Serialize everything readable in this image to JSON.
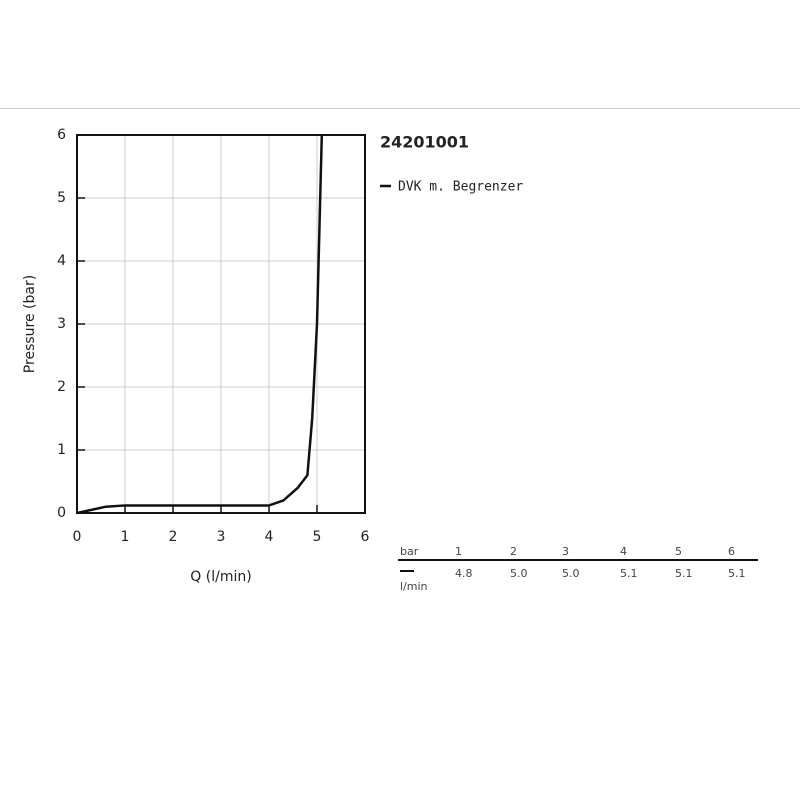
{
  "chart_data": {
    "type": "line",
    "title": "24201001",
    "x_label": "Q (l/min)",
    "y_label": "Pressure (bar)",
    "xlim": [
      0,
      6
    ],
    "ylim": [
      0,
      6
    ],
    "xticks": [
      0,
      1,
      2,
      3,
      4,
      5,
      6
    ],
    "yticks": [
      0,
      1,
      2,
      3,
      4,
      5,
      6
    ],
    "grid": true,
    "x": [
      0,
      0.3,
      0.6,
      1,
      2,
      3,
      4,
      4.3,
      4.6,
      4.8,
      4.9,
      5.0,
      5.05,
      5.1
    ],
    "series": [
      {
        "name": "DVK m. Begrenzer",
        "color": "#111111",
        "values": [
          0,
          0.05,
          0.1,
          0.12,
          0.12,
          0.12,
          0.12,
          0.2,
          0.4,
          0.6,
          1.5,
          3.0,
          4.5,
          6
        ]
      }
    ]
  },
  "table": {
    "header": [
      "bar",
      "1",
      "2",
      "3",
      "4",
      "5",
      "6"
    ],
    "rows": [
      [
        "l/min",
        "4.8",
        "5.0",
        "5.0",
        "5.1",
        "5.1",
        "5.1"
      ]
    ]
  }
}
